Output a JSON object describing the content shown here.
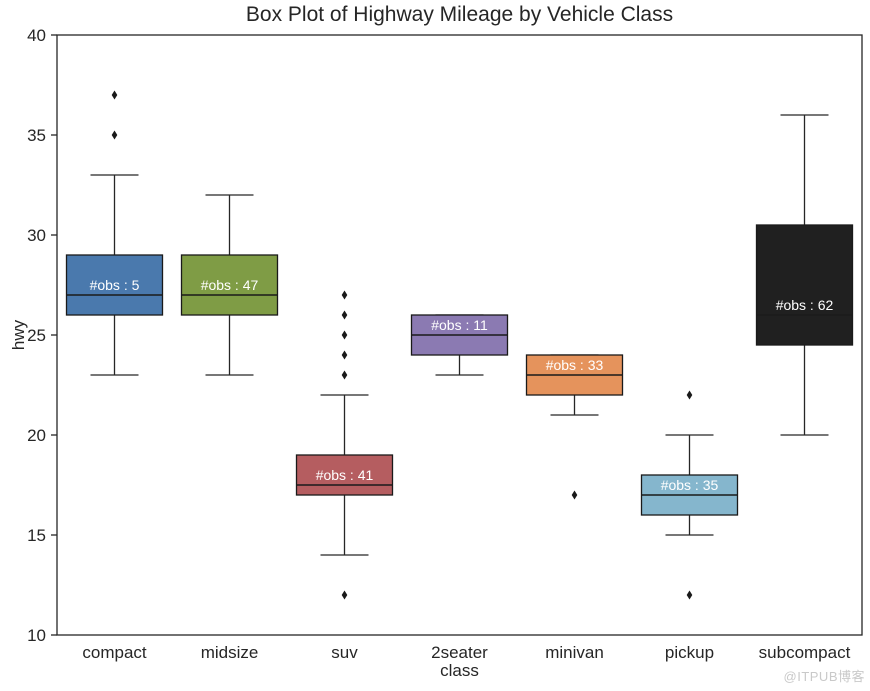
{
  "title": "Box Plot of Highway Mileage by Vehicle Class",
  "watermark": "@ITPUB博客",
  "chart_data": {
    "type": "boxplot",
    "title": "Box Plot of Highway Mileage by Vehicle Class",
    "xlabel": "class",
    "ylabel": "hwy",
    "ylim": [
      10,
      40
    ],
    "yticks": [
      40,
      35,
      30,
      25,
      20,
      15,
      10
    ],
    "grid": false,
    "legend": false,
    "categories": [
      "compact",
      "midsize",
      "suv",
      "2seater",
      "minivan",
      "pickup",
      "subcompact"
    ],
    "boxes": [
      {
        "label": "compact",
        "n_obs": 5,
        "obs_label": "#obs : 5",
        "color": "#4a79ad",
        "whisker_low": 23,
        "q1": 26,
        "median": 27,
        "q3": 29,
        "whisker_high": 33,
        "outliers": [
          35,
          37
        ]
      },
      {
        "label": "midsize",
        "n_obs": 47,
        "obs_label": "#obs : 47",
        "color": "#7f9c45",
        "whisker_low": 23,
        "q1": 26,
        "median": 27,
        "q3": 29,
        "whisker_high": 32,
        "outliers": []
      },
      {
        "label": "suv",
        "n_obs": 41,
        "obs_label": "#obs : 41",
        "color": "#b55d60",
        "whisker_low": 14,
        "q1": 17,
        "median": 17.5,
        "q3": 19,
        "whisker_high": 22,
        "outliers": [
          23,
          24,
          25,
          26,
          27,
          12
        ]
      },
      {
        "label": "2seater",
        "n_obs": 11,
        "obs_label": "#obs : 11",
        "color": "#8b7ab2",
        "whisker_low": 23,
        "q1": 24,
        "median": 25,
        "q3": 26,
        "whisker_high": 26,
        "outliers": []
      },
      {
        "label": "minivan",
        "n_obs": 33,
        "obs_label": "#obs : 33",
        "color": "#e5935c",
        "whisker_low": 21,
        "q1": 22,
        "median": 23,
        "q3": 24,
        "whisker_high": 24,
        "outliers": [
          17
        ]
      },
      {
        "label": "pickup",
        "n_obs": 35,
        "obs_label": "#obs : 35",
        "color": "#85b6cd",
        "whisker_low": 15,
        "q1": 16,
        "median": 17,
        "q3": 18,
        "whisker_high": 20,
        "outliers": [
          22,
          12
        ]
      },
      {
        "label": "subcompact",
        "n_obs": 62,
        "obs_label": "#obs : 62",
        "color": "#202020",
        "whisker_low": 20,
        "q1": 24.5,
        "median": 26,
        "q3": 30.5,
        "whisker_high": 36,
        "outliers": []
      }
    ],
    "colors": {
      "axis": "#262626",
      "tick_text": "#262626",
      "obs_label": "#ffffff",
      "outlier": "#1a1a1a",
      "watermark": "#c9c9c9"
    }
  }
}
